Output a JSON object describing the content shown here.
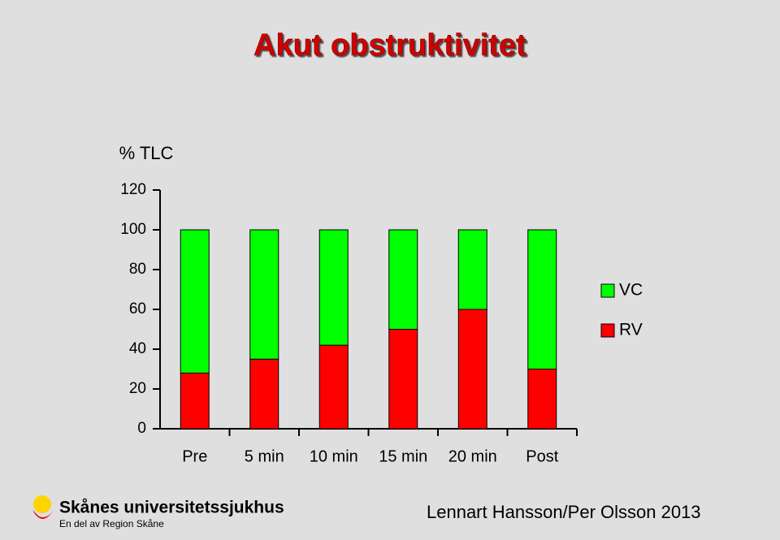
{
  "chart_data": {
    "type": "stacked_bar",
    "title": "Akut obstruktivitet",
    "y_label": "% TLC",
    "categories": [
      "Pre",
      "5 min",
      "10 min",
      "15 min",
      "20 min",
      "Post"
    ],
    "series": [
      {
        "name": "VC",
        "color": "#00ff00",
        "values": [
          72,
          65,
          58,
          50,
          40,
          70
        ]
      },
      {
        "name": "RV",
        "color": "#ff0000",
        "values": [
          28,
          35,
          42,
          50,
          60,
          30
        ]
      }
    ],
    "ylim": [
      0,
      120
    ],
    "yticks": [
      0,
      20,
      40,
      60,
      80,
      100,
      120
    ],
    "legend": "right"
  },
  "footer": {
    "logo_title": "Skånes universitetssjukhus",
    "logo_subtitle": "En del av Region Skåne",
    "author": "Lennart  Hansson/Per Olsson 2013"
  }
}
